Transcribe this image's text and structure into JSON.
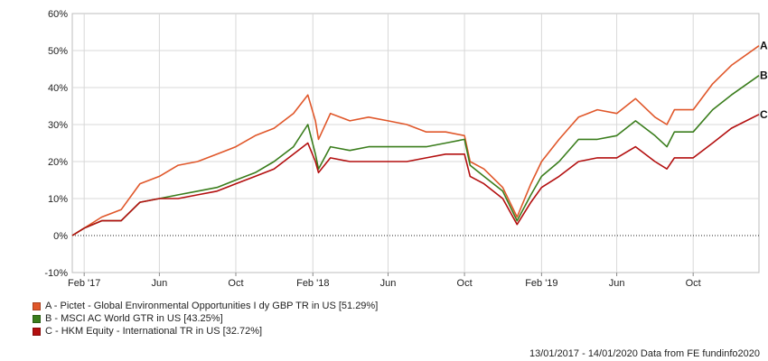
{
  "chart_data": {
    "type": "line",
    "x_range": [
      "2017-01-13",
      "2020-01-14"
    ],
    "xticks": [
      {
        "date": "2017-02-01",
        "label": "Feb '17"
      },
      {
        "date": "2017-06-01",
        "label": "Jun"
      },
      {
        "date": "2017-10-01",
        "label": "Oct"
      },
      {
        "date": "2018-02-01",
        "label": "Feb '18"
      },
      {
        "date": "2018-06-01",
        "label": "Jun"
      },
      {
        "date": "2018-10-01",
        "label": "Oct"
      },
      {
        "date": "2019-02-01",
        "label": "Feb '19"
      },
      {
        "date": "2019-06-01",
        "label": "Jun"
      },
      {
        "date": "2019-10-01",
        "label": "Oct"
      }
    ],
    "ylim": [
      -10,
      60
    ],
    "yticks": [
      -10,
      0,
      10,
      20,
      30,
      40,
      50,
      60
    ],
    "ytick_suffix": "%",
    "grid": true,
    "legend_position": "bottom-left",
    "series": [
      {
        "key": "A",
        "name": "A - Pictet - Global Environmental Opportunities I dy GBP TR in US [51.29%]",
        "color": "#e0572a",
        "points": [
          [
            "2017-01-13",
            0
          ],
          [
            "2017-02-01",
            2
          ],
          [
            "2017-03-01",
            5
          ],
          [
            "2017-04-01",
            7
          ],
          [
            "2017-05-01",
            14
          ],
          [
            "2017-06-01",
            16
          ],
          [
            "2017-07-01",
            19
          ],
          [
            "2017-08-01",
            20
          ],
          [
            "2017-09-01",
            22
          ],
          [
            "2017-10-01",
            24
          ],
          [
            "2017-11-01",
            27
          ],
          [
            "2017-12-01",
            29
          ],
          [
            "2018-01-01",
            33
          ],
          [
            "2018-01-24",
            38
          ],
          [
            "2018-02-05",
            31
          ],
          [
            "2018-02-10",
            26
          ],
          [
            "2018-03-01",
            33
          ],
          [
            "2018-04-01",
            31
          ],
          [
            "2018-05-01",
            32
          ],
          [
            "2018-06-01",
            31
          ],
          [
            "2018-07-01",
            30
          ],
          [
            "2018-08-01",
            28
          ],
          [
            "2018-09-01",
            28
          ],
          [
            "2018-10-01",
            27
          ],
          [
            "2018-10-10",
            20
          ],
          [
            "2018-11-01",
            18
          ],
          [
            "2018-12-01",
            13
          ],
          [
            "2018-12-24",
            5
          ],
          [
            "2019-01-15",
            14
          ],
          [
            "2019-02-01",
            20
          ],
          [
            "2019-03-01",
            26
          ],
          [
            "2019-04-01",
            32
          ],
          [
            "2019-05-01",
            34
          ],
          [
            "2019-06-01",
            33
          ],
          [
            "2019-07-01",
            37
          ],
          [
            "2019-08-01",
            32
          ],
          [
            "2019-08-20",
            30
          ],
          [
            "2019-09-01",
            34
          ],
          [
            "2019-10-01",
            34
          ],
          [
            "2019-11-01",
            41
          ],
          [
            "2019-12-01",
            46
          ],
          [
            "2020-01-14",
            51.29
          ]
        ]
      },
      {
        "key": "B",
        "name": "B - MSCI AC World GTR in US [43.25%]",
        "color": "#3a7d1c",
        "points": [
          [
            "2017-01-13",
            0
          ],
          [
            "2017-02-01",
            2
          ],
          [
            "2017-03-01",
            4
          ],
          [
            "2017-04-01",
            4
          ],
          [
            "2017-05-01",
            9
          ],
          [
            "2017-06-01",
            10
          ],
          [
            "2017-07-01",
            11
          ],
          [
            "2017-08-01",
            12
          ],
          [
            "2017-09-01",
            13
          ],
          [
            "2017-10-01",
            15
          ],
          [
            "2017-11-01",
            17
          ],
          [
            "2017-12-01",
            20
          ],
          [
            "2018-01-01",
            24
          ],
          [
            "2018-01-24",
            30
          ],
          [
            "2018-02-05",
            22
          ],
          [
            "2018-02-10",
            18
          ],
          [
            "2018-03-01",
            24
          ],
          [
            "2018-04-01",
            23
          ],
          [
            "2018-05-01",
            24
          ],
          [
            "2018-06-01",
            24
          ],
          [
            "2018-07-01",
            24
          ],
          [
            "2018-08-01",
            24
          ],
          [
            "2018-09-01",
            25
          ],
          [
            "2018-10-01",
            26
          ],
          [
            "2018-10-10",
            19
          ],
          [
            "2018-11-01",
            16
          ],
          [
            "2018-12-01",
            12
          ],
          [
            "2018-12-24",
            4
          ],
          [
            "2019-01-15",
            11
          ],
          [
            "2019-02-01",
            16
          ],
          [
            "2019-03-01",
            20
          ],
          [
            "2019-04-01",
            26
          ],
          [
            "2019-05-01",
            26
          ],
          [
            "2019-06-01",
            27
          ],
          [
            "2019-07-01",
            31
          ],
          [
            "2019-08-01",
            27
          ],
          [
            "2019-08-20",
            24
          ],
          [
            "2019-09-01",
            28
          ],
          [
            "2019-10-01",
            28
          ],
          [
            "2019-11-01",
            34
          ],
          [
            "2019-12-01",
            38
          ],
          [
            "2020-01-14",
            43.25
          ]
        ]
      },
      {
        "key": "C",
        "name": "C - HKM Equity - International TR in US [32.72%]",
        "color": "#b30f0f",
        "points": [
          [
            "2017-01-13",
            0
          ],
          [
            "2017-02-01",
            2
          ],
          [
            "2017-03-01",
            4
          ],
          [
            "2017-04-01",
            4
          ],
          [
            "2017-05-01",
            9
          ],
          [
            "2017-06-01",
            10
          ],
          [
            "2017-07-01",
            10
          ],
          [
            "2017-08-01",
            11
          ],
          [
            "2017-09-01",
            12
          ],
          [
            "2017-10-01",
            14
          ],
          [
            "2017-11-01",
            16
          ],
          [
            "2017-12-01",
            18
          ],
          [
            "2018-01-01",
            22
          ],
          [
            "2018-01-24",
            25
          ],
          [
            "2018-02-05",
            20
          ],
          [
            "2018-02-10",
            17
          ],
          [
            "2018-03-01",
            21
          ],
          [
            "2018-04-01",
            20
          ],
          [
            "2018-05-01",
            20
          ],
          [
            "2018-06-01",
            20
          ],
          [
            "2018-07-01",
            20
          ],
          [
            "2018-08-01",
            21
          ],
          [
            "2018-09-01",
            22
          ],
          [
            "2018-10-01",
            22
          ],
          [
            "2018-10-10",
            16
          ],
          [
            "2018-11-01",
            14
          ],
          [
            "2018-12-01",
            10
          ],
          [
            "2018-12-24",
            3
          ],
          [
            "2019-01-15",
            9
          ],
          [
            "2019-02-01",
            13
          ],
          [
            "2019-03-01",
            16
          ],
          [
            "2019-04-01",
            20
          ],
          [
            "2019-05-01",
            21
          ],
          [
            "2019-06-01",
            21
          ],
          [
            "2019-07-01",
            24
          ],
          [
            "2019-08-01",
            20
          ],
          [
            "2019-08-20",
            18
          ],
          [
            "2019-09-01",
            21
          ],
          [
            "2019-10-01",
            21
          ],
          [
            "2019-11-01",
            25
          ],
          [
            "2019-12-01",
            29
          ],
          [
            "2020-01-14",
            32.72
          ]
        ]
      }
    ],
    "footer": "13/01/2017 - 14/01/2020 Data from FE fundinfo2020"
  }
}
